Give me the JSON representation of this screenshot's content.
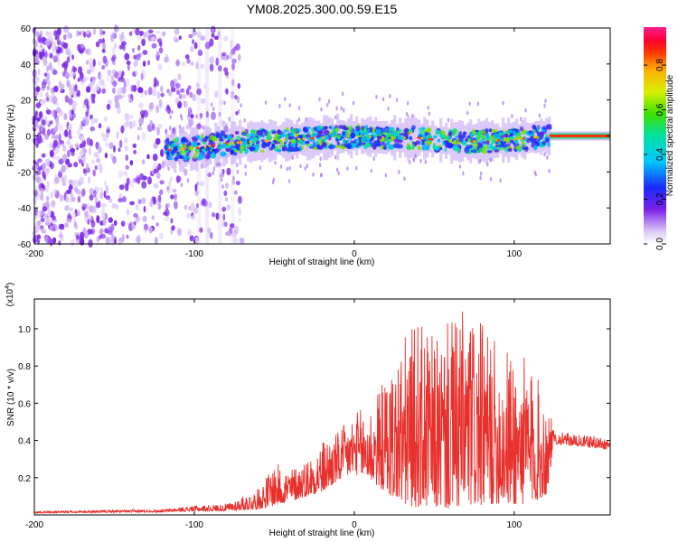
{
  "title": "YM08.2025.300.00.59.E15",
  "spectrogram": {
    "type": "heatmap",
    "xlabel": "Height of straight line (km)",
    "ylabel": "Frequency (Hz)",
    "xlim": [
      -200,
      160
    ],
    "ylim": [
      -60,
      60
    ],
    "xticks": [
      "-200",
      "-100",
      "0",
      "100"
    ],
    "yticks": [
      "60",
      "40",
      "20",
      "0",
      "-20",
      "-40",
      "-60"
    ],
    "noise_region_x": [
      -200,
      -70
    ],
    "signal_start_x": -118,
    "tone_start_x": 122,
    "band_center": [
      {
        "x": -118,
        "y": -8
      },
      {
        "x": -100,
        "y": -7
      },
      {
        "x": -80,
        "y": -4
      },
      {
        "x": -60,
        "y": -3
      },
      {
        "x": -40,
        "y": -2
      },
      {
        "x": -20,
        "y": -1
      },
      {
        "x": 0,
        "y": 0
      },
      {
        "x": 20,
        "y": -1
      },
      {
        "x": 40,
        "y": -1
      },
      {
        "x": 60,
        "y": -3
      },
      {
        "x": 80,
        "y": -3
      },
      {
        "x": 100,
        "y": -2
      },
      {
        "x": 120,
        "y": 0
      },
      {
        "x": 160,
        "y": 0
      }
    ],
    "colorbar": {
      "label": "Normalized spectral amplitude",
      "ticks": [
        "0.0",
        "0.2",
        "0.4",
        "0.6",
        "0.8"
      ],
      "range": [
        0,
        0.97
      ]
    }
  },
  "chart_data": {
    "type": "line",
    "series": [
      {
        "name": "SNR",
        "color": "#e8302c"
      }
    ],
    "xlabel": "Height of straight line (km)",
    "ylabel": "SNR (10 * v/v)",
    "scale_note": "(x10",
    "scale_exp": "4",
    "xlim": [
      -200,
      160
    ],
    "ylim": [
      0,
      1.16
    ],
    "xticks": [
      "-200",
      "-100",
      "0",
      "100"
    ],
    "yticks": [
      "0.2",
      "0.4",
      "0.6",
      "0.8",
      "1.0"
    ],
    "envelope": {
      "x": [
        -200,
        -120,
        -100,
        -80,
        -60,
        -50,
        -40,
        -30,
        -20,
        -10,
        0,
        10,
        20,
        30,
        40,
        50,
        60,
        70,
        80,
        90,
        100,
        110,
        120,
        125,
        140,
        160
      ],
      "lower": [
        0.01,
        0.015,
        0.02,
        0.02,
        0.03,
        0.05,
        0.07,
        0.1,
        0.12,
        0.18,
        0.22,
        0.18,
        0.12,
        0.05,
        0.04,
        0.04,
        0.03,
        0.04,
        0.05,
        0.06,
        0.05,
        0.06,
        0.1,
        0.38,
        0.37,
        0.35
      ],
      "upper": [
        0.02,
        0.03,
        0.05,
        0.06,
        0.14,
        0.28,
        0.25,
        0.3,
        0.4,
        0.45,
        0.55,
        0.6,
        0.75,
        0.95,
        1.05,
        0.95,
        1.05,
        1.12,
        1.02,
        0.92,
        0.9,
        0.82,
        0.65,
        0.45,
        0.43,
        0.42
      ]
    }
  }
}
